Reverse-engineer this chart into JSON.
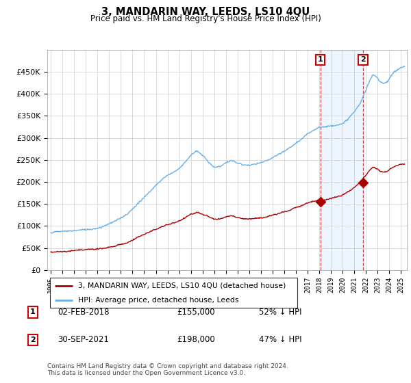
{
  "title": "3, MANDARIN WAY, LEEDS, LS10 4QU",
  "subtitle": "Price paid vs. HM Land Registry's House Price Index (HPI)",
  "hpi_color": "#6ab0e8",
  "price_color": "#aa0000",
  "vline_color": "#cc4444",
  "shade_color": "#ddeeff",
  "marker1_date_x": 2018.08,
  "marker2_date_x": 2021.75,
  "marker1_price": 155000,
  "marker2_price": 198000,
  "marker1_label": "02-FEB-2018",
  "marker2_label": "30-SEP-2021",
  "marker1_pct": "52% ↓ HPI",
  "marker2_pct": "47% ↓ HPI",
  "legend_label1": "3, MANDARIN WAY, LEEDS, LS10 4QU (detached house)",
  "legend_label2": "HPI: Average price, detached house, Leeds",
  "footer": "Contains HM Land Registry data © Crown copyright and database right 2024.\nThis data is licensed under the Open Government Licence v3.0.",
  "ylim": [
    0,
    500000
  ],
  "yticks": [
    0,
    50000,
    100000,
    150000,
    200000,
    250000,
    300000,
    350000,
    400000,
    450000
  ],
  "xlim_start": 1994.7,
  "xlim_end": 2025.5
}
